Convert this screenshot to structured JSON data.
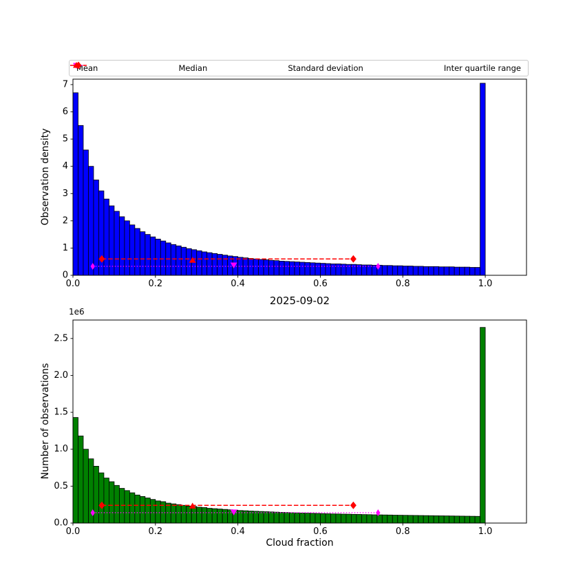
{
  "title": "2025-09-02",
  "xlabel": "Cloud fraction",
  "legend": {
    "items": [
      {
        "label": "Mean",
        "marker": "triangle-down",
        "color": "#ff00ff"
      },
      {
        "label": "Median",
        "marker": "triangle-up",
        "color": "#ff0000"
      },
      {
        "label": "Standard deviation",
        "marker": "thin-diamond-dotted",
        "color": "#ff00ff"
      },
      {
        "label": "Inter quartile range",
        "marker": "diamond-dashed",
        "color": "#ff0000"
      }
    ]
  },
  "marker_colors": {
    "mean": "#ff00ff",
    "median": "#ff0000",
    "std": "#ff00ff",
    "iqr": "#ff0000"
  },
  "chart_data": [
    {
      "type": "bar",
      "ylabel": "Observation density",
      "bar_color": "#0000ff",
      "edge_color": "#000000",
      "bin_start": 0,
      "bin_width": 0.0125,
      "xlim": [
        0,
        1.1
      ],
      "ylim": [
        0,
        7.2
      ],
      "xticks": [
        0,
        0.2,
        0.4,
        0.6,
        0.8,
        1.0
      ],
      "xtick_labels": [
        "0.0",
        "0.2",
        "0.4",
        "0.6",
        "0.8",
        "1.0"
      ],
      "yticks": [
        0,
        1,
        2,
        3,
        4,
        5,
        6,
        7
      ],
      "ytick_labels": [
        "0",
        "1",
        "2",
        "3",
        "4",
        "5",
        "6",
        "7"
      ],
      "values": [
        6.7,
        5.5,
        4.6,
        4.0,
        3.5,
        3.1,
        2.8,
        2.55,
        2.35,
        2.15,
        2.0,
        1.85,
        1.72,
        1.6,
        1.5,
        1.41,
        1.33,
        1.26,
        1.19,
        1.13,
        1.08,
        1.03,
        0.98,
        0.94,
        0.9,
        0.86,
        0.83,
        0.8,
        0.77,
        0.74,
        0.71,
        0.69,
        0.66,
        0.64,
        0.62,
        0.6,
        0.58,
        0.57,
        0.55,
        0.54,
        0.52,
        0.51,
        0.5,
        0.49,
        0.48,
        0.47,
        0.46,
        0.45,
        0.44,
        0.43,
        0.42,
        0.42,
        0.41,
        0.4,
        0.4,
        0.39,
        0.38,
        0.38,
        0.37,
        0.37,
        0.36,
        0.36,
        0.35,
        0.35,
        0.34,
        0.34,
        0.33,
        0.33,
        0.32,
        0.32,
        0.32,
        0.31,
        0.31,
        0.31,
        0.3,
        0.3,
        0.3,
        0.29,
        0.29,
        7.05
      ],
      "markers": {
        "mean": {
          "x": 0.39,
          "y": 0.38
        },
        "median": {
          "x": 0.29,
          "y": 0.55
        },
        "std": {
          "x1": 0.048,
          "x2": 0.74,
          "y": 0.33
        },
        "iqr": {
          "x1": 0.07,
          "x2": 0.68,
          "y": 0.6
        }
      }
    },
    {
      "type": "bar",
      "ylabel": "Number of observations",
      "offset_text": "1e6",
      "bar_color": "#008000",
      "edge_color": "#000000",
      "bin_start": 0,
      "bin_width": 0.0125,
      "xlim": [
        0,
        1.1
      ],
      "ylim": [
        0,
        2.75
      ],
      "xticks": [
        0,
        0.2,
        0.4,
        0.6,
        0.8,
        1.0
      ],
      "xtick_labels": [
        "0.0",
        "0.2",
        "0.4",
        "0.6",
        "0.8",
        "1.0"
      ],
      "yticks": [
        0,
        0.5,
        1.0,
        1.5,
        2.0,
        2.5
      ],
      "ytick_labels": [
        "0.0",
        "0.5",
        "1.0",
        "1.5",
        "2.0",
        "2.5"
      ],
      "values": [
        1.43,
        1.18,
        1.0,
        0.87,
        0.77,
        0.68,
        0.61,
        0.56,
        0.51,
        0.47,
        0.44,
        0.41,
        0.38,
        0.36,
        0.34,
        0.32,
        0.3,
        0.29,
        0.27,
        0.26,
        0.25,
        0.24,
        0.23,
        0.225,
        0.215,
        0.21,
        0.2,
        0.195,
        0.19,
        0.185,
        0.18,
        0.175,
        0.17,
        0.167,
        0.163,
        0.16,
        0.157,
        0.154,
        0.151,
        0.148,
        0.145,
        0.143,
        0.14,
        0.138,
        0.136,
        0.134,
        0.132,
        0.13,
        0.128,
        0.126,
        0.124,
        0.123,
        0.121,
        0.12,
        0.118,
        0.117,
        0.115,
        0.114,
        0.112,
        0.111,
        0.11,
        0.109,
        0.107,
        0.106,
        0.105,
        0.104,
        0.103,
        0.102,
        0.101,
        0.1,
        0.099,
        0.098,
        0.097,
        0.096,
        0.095,
        0.094,
        0.093,
        0.092,
        0.091,
        2.65
      ],
      "markers": {
        "mean": {
          "x": 0.39,
          "y": 0.15
        },
        "median": {
          "x": 0.29,
          "y": 0.23
        },
        "std": {
          "x1": 0.048,
          "x2": 0.74,
          "y": 0.14
        },
        "iqr": {
          "x1": 0.07,
          "x2": 0.68,
          "y": 0.24
        }
      }
    }
  ]
}
